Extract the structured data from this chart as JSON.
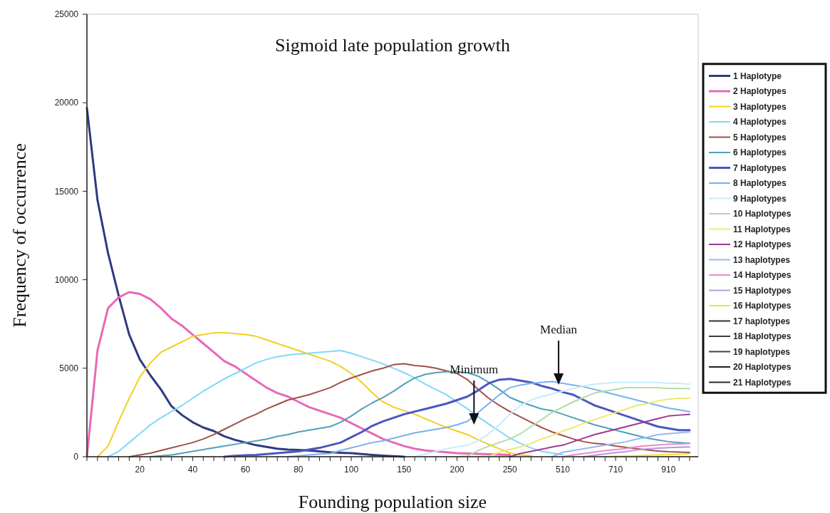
{
  "chart_data": {
    "type": "line",
    "title": "Sigmoid late population growth",
    "xlabel": "Founding population size",
    "ylabel": "Frequency of occurrence",
    "categories": [
      null,
      null,
      null,
      null,
      null,
      "20",
      null,
      null,
      null,
      null,
      "40",
      null,
      null,
      null,
      null,
      "60",
      null,
      null,
      null,
      null,
      "80",
      null,
      null,
      null,
      null,
      "100",
      null,
      null,
      null,
      null,
      "150",
      null,
      null,
      null,
      null,
      "200",
      null,
      null,
      null,
      null,
      "250",
      null,
      null,
      null,
      null,
      "510",
      null,
      null,
      null,
      null,
      "710",
      null,
      null,
      null,
      null,
      "910",
      null,
      null
    ],
    "ylim": [
      0,
      25000
    ],
    "yticks": [
      0,
      5000,
      10000,
      15000,
      20000,
      25000
    ],
    "legend": "right",
    "annotations": [
      "Minimum",
      "Median"
    ],
    "series": [
      {
        "name": "1 Haplotype",
        "color": "#2e3a80",
        "values": [
          19700,
          14500,
          11500,
          9100,
          6900,
          5500,
          4600,
          3800,
          2850,
          2350,
          1950,
          1650,
          1450,
          1150,
          950,
          800,
          650,
          550,
          450,
          400,
          380,
          350,
          300,
          250,
          220,
          200,
          150,
          100,
          60,
          30,
          0,
          null,
          null,
          null,
          null,
          null,
          null,
          null,
          null,
          null,
          null,
          null,
          null,
          null,
          null,
          null,
          null,
          null,
          null,
          null,
          null,
          null,
          null,
          null,
          null,
          null,
          null,
          null
        ]
      },
      {
        "name": "2 Haplotypes",
        "color": "#e868b8",
        "values": [
          0,
          6000,
          8400,
          9000,
          9300,
          9200,
          8900,
          8400,
          7800,
          7400,
          6900,
          6400,
          5900,
          5400,
          5100,
          4700,
          4300,
          3900,
          3600,
          3400,
          3100,
          2800,
          2600,
          2400,
          2200,
          1900,
          1600,
          1300,
          1000,
          800,
          600,
          450,
          350,
          300,
          250,
          200,
          180,
          160,
          140,
          120,
          100,
          null,
          null,
          null,
          null,
          null,
          null,
          null,
          null,
          null,
          null,
          null,
          null,
          null,
          null,
          null,
          null,
          null
        ]
      },
      {
        "name": "3 Haplotypes",
        "color": "#f0d020",
        "values": [
          null,
          0,
          600,
          2000,
          3300,
          4500,
          5300,
          5900,
          6200,
          6500,
          6800,
          6900,
          7000,
          7000,
          6950,
          6900,
          6800,
          6600,
          6400,
          6200,
          6000,
          5800,
          5600,
          5400,
          5100,
          4700,
          4200,
          3600,
          3100,
          2800,
          2600,
          2400,
          2150,
          1900,
          1650,
          1450,
          1250,
          950,
          700,
          450,
          200,
          100,
          50,
          null,
          null,
          null,
          null,
          null,
          null,
          null,
          null,
          null,
          null,
          null,
          null,
          null,
          null,
          null
        ]
      },
      {
        "name": "4 Haplotypes",
        "color": "#80d8f8",
        "values": [
          null,
          null,
          0,
          300,
          800,
          1300,
          1800,
          2200,
          2550,
          2900,
          3300,
          3700,
          4050,
          4400,
          4700,
          5000,
          5300,
          5500,
          5650,
          5750,
          5800,
          5850,
          5900,
          5950,
          6000,
          5850,
          5650,
          5450,
          5250,
          5000,
          4750,
          4450,
          4100,
          3800,
          3500,
          3100,
          2700,
          2250,
          1850,
          1450,
          1050,
          750,
          500,
          300,
          200,
          120,
          null,
          null,
          null,
          null,
          null,
          null,
          null,
          null,
          null,
          null,
          null,
          null
        ]
      },
      {
        "name": "5 Haplotypes",
        "color": "#a05048",
        "values": [
          null,
          null,
          null,
          null,
          0,
          100,
          200,
          350,
          500,
          650,
          800,
          1000,
          1250,
          1550,
          1850,
          2150,
          2400,
          2700,
          2950,
          3200,
          3350,
          3500,
          3700,
          3900,
          4200,
          4450,
          4650,
          4850,
          5000,
          5200,
          5250,
          5150,
          5100,
          5000,
          4850,
          4700,
          4350,
          3800,
          3300,
          2900,
          2550,
          2250,
          1950,
          1650,
          1400,
          1200,
          1000,
          850,
          750,
          700,
          600,
          520,
          450,
          380,
          320,
          280,
          260,
          240
        ]
      },
      {
        "name": "6 Haplotypes",
        "color": "#50a0b8",
        "values": [
          null,
          null,
          null,
          null,
          null,
          null,
          0,
          50,
          100,
          200,
          300,
          400,
          500,
          600,
          700,
          800,
          900,
          1000,
          1150,
          1250,
          1400,
          1500,
          1600,
          1700,
          1950,
          2300,
          2700,
          3050,
          3350,
          3700,
          4100,
          4450,
          4650,
          4750,
          4800,
          4800,
          4750,
          4550,
          4200,
          3800,
          3350,
          3100,
          2900,
          2700,
          2600,
          2400,
          2200,
          2000,
          1800,
          1650,
          1500,
          1350,
          1200,
          1050,
          950,
          850,
          800,
          750
        ]
      },
      {
        "name": "7 Haplotypes",
        "color": "#4858c0",
        "values": [
          null,
          null,
          null,
          null,
          null,
          null,
          null,
          null,
          null,
          null,
          null,
          null,
          null,
          0,
          50,
          80,
          100,
          150,
          200,
          250,
          300,
          400,
          500,
          650,
          800,
          1100,
          1400,
          1750,
          2000,
          2200,
          2400,
          2550,
          2700,
          2850,
          3000,
          3200,
          3400,
          3750,
          4150,
          4350,
          4400,
          4300,
          4200,
          4000,
          3850,
          3650,
          3500,
          3200,
          2900,
          2700,
          2500,
          2300,
          2100,
          1900,
          1700,
          1600,
          1500,
          1500
        ]
      },
      {
        "name": "8 Haplotypes",
        "color": "#78b0f0",
        "values": [
          null,
          null,
          null,
          null,
          null,
          null,
          null,
          null,
          null,
          null,
          null,
          null,
          null,
          null,
          null,
          null,
          null,
          null,
          null,
          0,
          50,
          100,
          150,
          180,
          350,
          500,
          650,
          800,
          900,
          1050,
          1200,
          1350,
          1450,
          1550,
          1650,
          1800,
          2000,
          2500,
          3000,
          3500,
          3900,
          4050,
          4150,
          4200,
          4250,
          4150,
          4050,
          3950,
          3800,
          3650,
          3500,
          3350,
          3200,
          3050,
          2900,
          2750,
          2650,
          2550
        ]
      },
      {
        "name": "9 Haplotypes",
        "color": "#c8ecfc",
        "values": [
          null,
          null,
          null,
          null,
          null,
          null,
          null,
          null,
          null,
          null,
          null,
          null,
          null,
          null,
          null,
          null,
          null,
          null,
          null,
          null,
          null,
          null,
          null,
          null,
          null,
          null,
          null,
          null,
          null,
          null,
          null,
          0,
          150,
          300,
          450,
          550,
          650,
          900,
          1300,
          1800,
          2400,
          2900,
          3200,
          3400,
          3550,
          3700,
          3850,
          4000,
          4100,
          4150,
          4200,
          4200,
          4200,
          4200,
          4200,
          4150,
          4150,
          4100
        ]
      },
      {
        "name": "10 Haplotypes",
        "color": "#b0dca8",
        "values": [
          null,
          null,
          null,
          null,
          null,
          null,
          null,
          null,
          null,
          null,
          null,
          null,
          null,
          null,
          null,
          null,
          null,
          null,
          null,
          null,
          null,
          null,
          null,
          null,
          null,
          null,
          null,
          null,
          null,
          null,
          null,
          null,
          null,
          null,
          null,
          0,
          40,
          350,
          600,
          800,
          1000,
          1300,
          1700,
          2100,
          2500,
          2800,
          3100,
          3350,
          3600,
          3700,
          3800,
          3900,
          3900,
          3900,
          3900,
          3850,
          3850,
          3850
        ]
      },
      {
        "name": "11 Haplotypes",
        "color": "#f0e870",
        "values": [
          null,
          null,
          null,
          null,
          null,
          null,
          null,
          null,
          null,
          null,
          null,
          null,
          null,
          null,
          null,
          null,
          null,
          null,
          null,
          null,
          null,
          null,
          null,
          null,
          null,
          null,
          null,
          null,
          null,
          null,
          null,
          null,
          null,
          null,
          null,
          null,
          null,
          0,
          20,
          250,
          400,
          550,
          750,
          1000,
          1200,
          1450,
          1650,
          1900,
          2100,
          2300,
          2500,
          2700,
          2900,
          3000,
          3150,
          3250,
          3300,
          3300
        ]
      },
      {
        "name": "12 Haplotypes",
        "color": "#a03890",
        "values": [
          null,
          null,
          null,
          null,
          null,
          null,
          null,
          null,
          null,
          null,
          null,
          null,
          null,
          null,
          null,
          null,
          null,
          null,
          null,
          null,
          null,
          null,
          null,
          null,
          null,
          null,
          null,
          null,
          null,
          null,
          null,
          null,
          null,
          null,
          null,
          null,
          null,
          null,
          null,
          null,
          0,
          180,
          300,
          420,
          550,
          650,
          850,
          1050,
          1250,
          1400,
          1550,
          1700,
          1850,
          2000,
          2150,
          2300,
          2350,
          2400
        ]
      },
      {
        "name": "13 haplotypes",
        "color": "#98b8f0",
        "values": [
          null,
          null,
          null,
          null,
          null,
          null,
          null,
          null,
          null,
          null,
          null,
          null,
          null,
          null,
          null,
          null,
          null,
          null,
          null,
          null,
          null,
          null,
          null,
          null,
          null,
          null,
          null,
          null,
          null,
          null,
          null,
          null,
          null,
          null,
          null,
          null,
          null,
          null,
          null,
          null,
          null,
          null,
          null,
          null,
          0,
          250,
          350,
          450,
          550,
          650,
          750,
          850,
          1000,
          1100,
          1250,
          1300,
          1350,
          1400
        ]
      },
      {
        "name": "14 Haplotypes",
        "color": "#f088c8",
        "values": [
          null,
          null,
          null,
          null,
          null,
          null,
          null,
          null,
          null,
          null,
          null,
          null,
          null,
          null,
          null,
          null,
          null,
          null,
          null,
          null,
          null,
          null,
          null,
          null,
          null,
          null,
          null,
          null,
          null,
          null,
          null,
          null,
          null,
          null,
          null,
          null,
          null,
          null,
          null,
          null,
          null,
          null,
          null,
          null,
          null,
          0,
          100,
          180,
          260,
          340,
          400,
          460,
          560,
          620,
          660,
          700,
          720,
          740
        ]
      },
      {
        "name": "15 Haplotypes",
        "color": "#b898e0",
        "values": [
          null,
          null,
          null,
          null,
          null,
          null,
          null,
          null,
          null,
          null,
          null,
          null,
          null,
          null,
          null,
          null,
          null,
          null,
          null,
          null,
          null,
          null,
          null,
          null,
          null,
          null,
          null,
          null,
          null,
          null,
          null,
          null,
          null,
          null,
          null,
          null,
          null,
          null,
          null,
          null,
          null,
          null,
          null,
          null,
          null,
          null,
          null,
          0,
          80,
          160,
          230,
          290,
          380,
          440,
          480,
          510,
          530,
          550
        ]
      },
      {
        "name": "16 Haplotypes",
        "color": "#f8e040",
        "values": [
          null,
          null,
          null,
          null,
          null,
          null,
          null,
          null,
          null,
          null,
          null,
          null,
          null,
          null,
          null,
          null,
          null,
          null,
          null,
          null,
          null,
          null,
          null,
          null,
          null,
          null,
          null,
          null,
          null,
          null,
          null,
          null,
          null,
          null,
          null,
          null,
          null,
          null,
          null,
          null,
          null,
          null,
          null,
          null,
          null,
          null,
          null,
          null,
          null,
          0,
          20,
          40,
          60,
          80,
          100,
          120,
          140,
          160
        ]
      },
      {
        "name": "17 haplotypes",
        "color": "#303040",
        "values": [
          null,
          null,
          null,
          null,
          null,
          null,
          null,
          null,
          null,
          null,
          null,
          null,
          null,
          null,
          null,
          null,
          null,
          null,
          null,
          null,
          null,
          null,
          null,
          null,
          null,
          null,
          null,
          null,
          null,
          null,
          null,
          null,
          null,
          null,
          null,
          null,
          null,
          null,
          null,
          null,
          null,
          null,
          null,
          null,
          null,
          null,
          null,
          null,
          null,
          null,
          null,
          null,
          null,
          null,
          null,
          null,
          null,
          null
        ]
      },
      {
        "name": "18 Haplotypes",
        "color": "#383848",
        "values": [
          null,
          null,
          null,
          null,
          null,
          null,
          null,
          null,
          null,
          null,
          null,
          null,
          null,
          null,
          null,
          null,
          null,
          null,
          null,
          null,
          null,
          null,
          null,
          null,
          null,
          null,
          null,
          null,
          null,
          null,
          null,
          null,
          null,
          null,
          null,
          null,
          null,
          null,
          null,
          null,
          null,
          null,
          null,
          null,
          null,
          null,
          null,
          null,
          null,
          null,
          null,
          null,
          null,
          null,
          null,
          null,
          null,
          null
        ]
      },
      {
        "name": "19 haplotypes",
        "color": "#404050",
        "values": [
          null,
          null,
          null,
          null,
          null,
          null,
          null,
          null,
          null,
          null,
          null,
          null,
          null,
          null,
          null,
          null,
          null,
          null,
          null,
          null,
          null,
          null,
          null,
          null,
          null,
          null,
          null,
          null,
          null,
          null,
          null,
          null,
          null,
          null,
          null,
          null,
          null,
          null,
          null,
          null,
          null,
          null,
          null,
          null,
          null,
          null,
          null,
          null,
          null,
          null,
          null,
          null,
          null,
          null,
          null,
          null,
          null,
          null
        ]
      },
      {
        "name": "20 Haplotypes",
        "color": "#202030",
        "values": [
          null,
          null,
          null,
          null,
          null,
          null,
          null,
          null,
          null,
          null,
          null,
          null,
          null,
          null,
          null,
          null,
          null,
          null,
          null,
          null,
          null,
          null,
          null,
          null,
          null,
          null,
          null,
          null,
          null,
          null,
          null,
          null,
          null,
          null,
          null,
          null,
          null,
          null,
          null,
          null,
          null,
          null,
          null,
          null,
          null,
          null,
          null,
          null,
          null,
          null,
          null,
          null,
          null,
          null,
          null,
          null,
          null,
          null
        ]
      },
      {
        "name": "21 Haplotypes",
        "color": "#282838",
        "values": [
          null,
          null,
          null,
          null,
          null,
          null,
          null,
          null,
          null,
          null,
          null,
          null,
          null,
          null,
          null,
          null,
          null,
          null,
          null,
          null,
          null,
          null,
          null,
          null,
          null,
          null,
          null,
          null,
          null,
          null,
          null,
          null,
          null,
          null,
          null,
          null,
          null,
          null,
          null,
          null,
          null,
          null,
          null,
          null,
          null,
          null,
          null,
          null,
          null,
          null,
          null,
          null,
          null,
          null,
          null,
          null,
          null,
          null
        ]
      }
    ]
  }
}
